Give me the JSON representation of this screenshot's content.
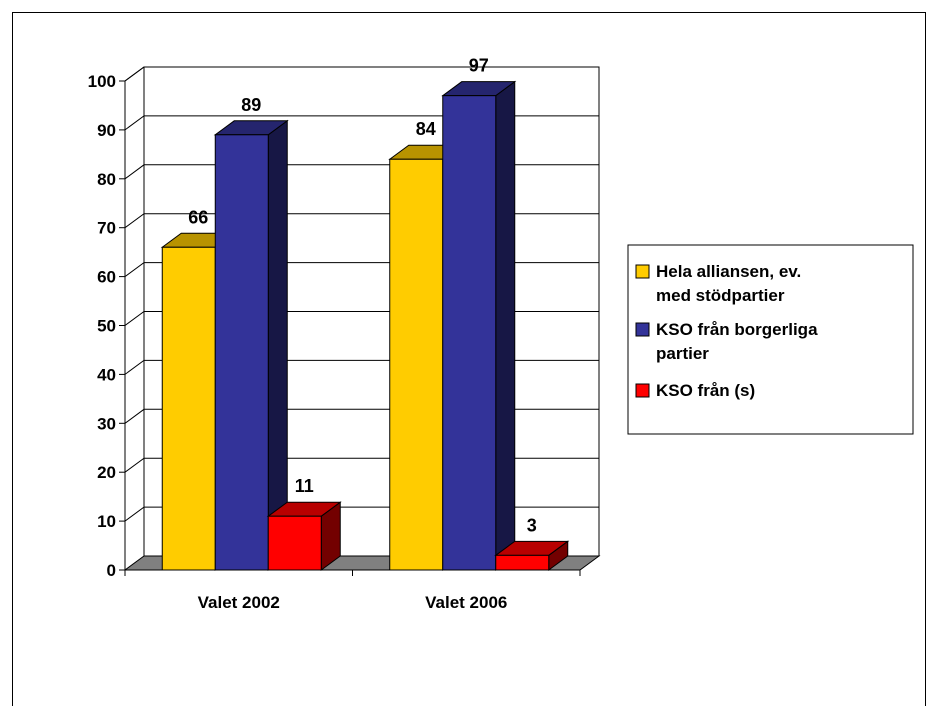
{
  "chart_data": {
    "type": "bar",
    "style": "3d-clustered-column",
    "categories": [
      "Valet 2002",
      "Valet 2006"
    ],
    "series": [
      {
        "name": "Hela alliansen, ev. med stödpartier",
        "name_lines": [
          "Hela alliansen, ev.",
          "med stödpartier"
        ],
        "color": "#FFCC00",
        "values": [
          66,
          84
        ]
      },
      {
        "name": "KSO från borgerliga partier",
        "name_lines": [
          "KSO från borgerliga",
          "partier"
        ],
        "color": "#333399",
        "values": [
          89,
          97
        ]
      },
      {
        "name": "KSO från (s)",
        "name_lines": [
          "KSO från (s)"
        ],
        "color": "#FF0000",
        "values": [
          11,
          3
        ]
      }
    ],
    "yticks": [
      0,
      10,
      20,
      30,
      40,
      50,
      60,
      70,
      80,
      90,
      100
    ],
    "ylim": [
      0,
      100
    ],
    "grid": true,
    "legend": "right",
    "wall_color": "#808080"
  }
}
